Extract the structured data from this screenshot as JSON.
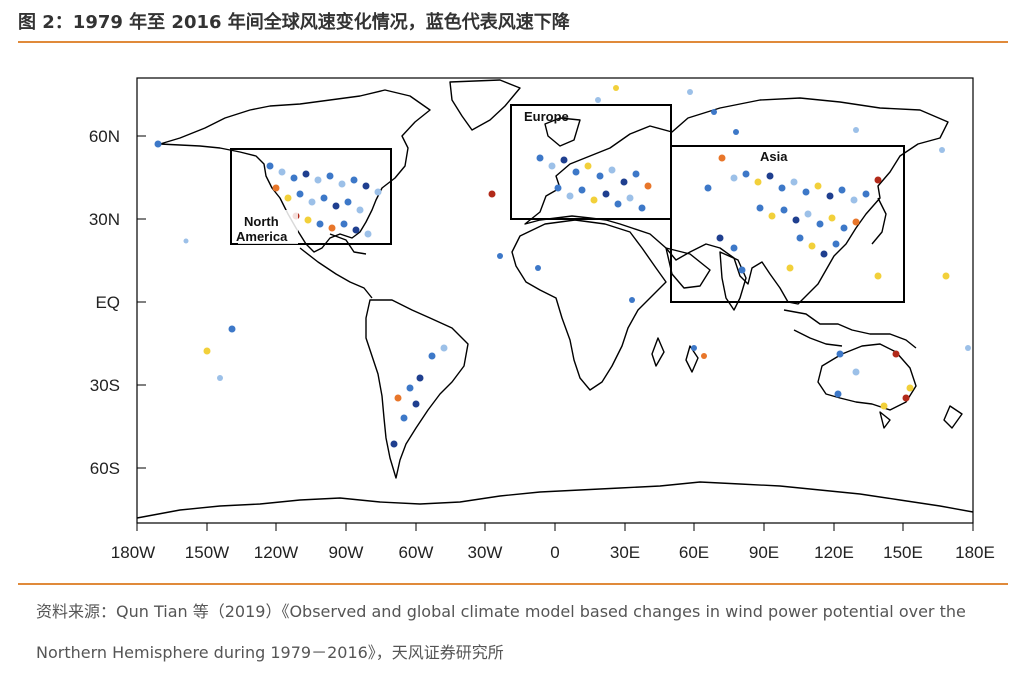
{
  "title": "图 2：1979 年至 2016 年间全球风速变化情况，蓝色代表风速下降",
  "map": {
    "lat_labels": [
      "60N",
      "30N",
      "EQ",
      "30S",
      "60S"
    ],
    "lon_labels": [
      "180W",
      "150W",
      "120W",
      "90W",
      "60W",
      "30W",
      "0",
      "30E",
      "60E",
      "90E",
      "120E",
      "150E",
      "180E"
    ],
    "regions": [
      {
        "name": "North America",
        "label_line1": "North",
        "label_line2": "America",
        "lon": [
          -133,
          -70
        ],
        "lat": [
          20,
          55
        ]
      },
      {
        "name": "Europe",
        "label_line1": "Europe",
        "lon": [
          -20,
          40
        ],
        "lat": [
          30,
          70
        ]
      },
      {
        "name": "Asia",
        "label_line1": "Asia",
        "lon": [
          40,
          145
        ],
        "lat": [
          0,
          56
        ]
      }
    ],
    "legend_meaning": "蓝色代表风速下降",
    "colors": {
      "decrease_dark": "#1f3f8f",
      "decrease": "#3d78c8",
      "decrease_light": "#9cc0e8",
      "neutral": "#e6eef6",
      "increase_light": "#f2d03a",
      "increase": "#e8762a",
      "increase_dark": "#b22a1a",
      "coastline": "#000000",
      "rule": "#e08a3a"
    }
  },
  "source_line1": "资料来源：Qun Tian 等（2019）《Observed and global climate model based changes in wind power potential over the",
  "source_line2": "Northern Hemisphere during 1979－2016》，天风证券研究所"
}
